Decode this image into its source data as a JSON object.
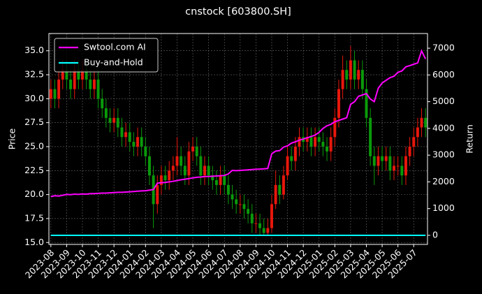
{
  "chart_data": {
    "type": "candlestick",
    "title": "cnstock [603800.SH]",
    "ylabel": "Price",
    "y2label": "Return",
    "categories": [
      "2023-08",
      null,
      null,
      null,
      "2023-09",
      null,
      null,
      null,
      "2023-10",
      null,
      null,
      null,
      "2023-11",
      null,
      null,
      null,
      "2023-12",
      null,
      null,
      null,
      "2024-01",
      null,
      null,
      null,
      "2024-02",
      null,
      null,
      null,
      "2024-03",
      null,
      null,
      null,
      "2024-04",
      null,
      null,
      null,
      "2024-05",
      null,
      null,
      null,
      "2024-06",
      null,
      null,
      null,
      "2024-07",
      null,
      null,
      null,
      "2024-08",
      null,
      null,
      null,
      "2024-09",
      null,
      null,
      null,
      "2024-10",
      null,
      null,
      null,
      "2024-11",
      null,
      null,
      null,
      "2024-12",
      null,
      null,
      null,
      "2025-01",
      null,
      null,
      null,
      "2025-02",
      null,
      null,
      null,
      "2025-03",
      null,
      null,
      null,
      "2025-04",
      null,
      null,
      null,
      "2025-05",
      null,
      null,
      null,
      "2025-06",
      null,
      null,
      null,
      "2025-07",
      null,
      null,
      null
    ],
    "open": [
      30,
      31,
      30,
      32,
      33,
      32,
      31,
      33,
      32,
      33,
      32,
      31,
      32,
      30,
      29,
      28,
      27.5,
      28,
      27,
      26,
      26.5,
      25.5,
      25,
      26,
      25,
      24,
      22,
      19,
      21,
      22,
      21.5,
      22.5,
      23,
      24,
      23,
      22,
      24.5,
      25,
      24,
      22,
      23,
      22,
      21.5,
      21,
      22,
      21,
      20,
      19.5,
      19,
      19,
      18.5,
      18,
      17,
      17,
      16.5,
      16,
      16.5,
      19,
      21,
      20,
      22,
      24,
      23.5,
      25,
      26,
      25.5,
      26,
      25,
      26,
      25.5,
      25,
      24.5,
      26,
      28,
      31,
      33,
      32,
      34,
      32,
      33,
      31,
      28,
      24,
      23,
      24,
      23.5,
      24,
      22.5,
      23,
      23,
      22,
      24,
      25,
      26,
      27,
      28
    ],
    "high": [
      32,
      32,
      33,
      34,
      34,
      33,
      34,
      34,
      34,
      34,
      33,
      33,
      33,
      31,
      30,
      29,
      29,
      29,
      28,
      27.5,
      27.5,
      26.5,
      27,
      27,
      26,
      25,
      23,
      22,
      23,
      23,
      23.5,
      24,
      26,
      25,
      24,
      25.5,
      26,
      26,
      25,
      24,
      24,
      23,
      22.5,
      23,
      23,
      22,
      21,
      20.5,
      20,
      20,
      19.5,
      19,
      18,
      18,
      17.5,
      17.5,
      20,
      22.5,
      22,
      23,
      25,
      25,
      26,
      27,
      27,
      27,
      27,
      27,
      27,
      26.5,
      26,
      27,
      29,
      32,
      34.5,
      34,
      35.5,
      35,
      34,
      34,
      32,
      29,
      25,
      25,
      25,
      25,
      25,
      24,
      24,
      24,
      25,
      26,
      27,
      28,
      29,
      29
    ],
    "low": [
      29,
      29,
      29,
      31,
      31,
      30,
      30,
      31,
      31,
      31,
      30,
      30,
      29,
      28,
      27,
      26.5,
      26.5,
      26,
      25,
      25,
      24.5,
      24,
      24,
      24,
      23,
      21,
      16.5,
      18,
      20,
      20.5,
      20.5,
      21.5,
      22,
      22,
      21,
      21,
      23.5,
      23,
      21,
      21,
      21,
      20.5,
      20,
      20,
      20,
      19,
      18.5,
      18,
      18,
      17.5,
      17,
      16,
      16,
      15.8,
      15.8,
      15.8,
      16,
      18.5,
      19,
      19.5,
      21.5,
      22.5,
      22.5,
      24,
      24.5,
      24.5,
      24,
      24,
      24.5,
      24,
      23.5,
      23.5,
      25,
      27,
      30,
      31,
      31,
      31,
      31,
      30,
      27,
      23,
      21,
      22,
      22.5,
      22.5,
      21.5,
      21.5,
      22,
      21,
      21,
      23,
      24,
      25,
      26,
      26
    ],
    "close": [
      31,
      30,
      32,
      33,
      32,
      31,
      33,
      32,
      33,
      32,
      31,
      32,
      30,
      29,
      28,
      27.5,
      28,
      27,
      26,
      26.5,
      25.5,
      25,
      26,
      25,
      24,
      22,
      19,
      21,
      22,
      21.5,
      22.5,
      23,
      24,
      23,
      22,
      24.5,
      25,
      24,
      22,
      23,
      22,
      21.5,
      21,
      22,
      21,
      20,
      19.5,
      19,
      19,
      18.5,
      18,
      17,
      17,
      16.5,
      16,
      16.5,
      19,
      21,
      20,
      22,
      24,
      23.5,
      25,
      26,
      25.5,
      26,
      25,
      26,
      25.5,
      25,
      24.5,
      26,
      28,
      31,
      33,
      32,
      34,
      32,
      33,
      31,
      28,
      24,
      23,
      24,
      23.5,
      24,
      22.5,
      23,
      23,
      22,
      24,
      25,
      26,
      27,
      28,
      27
    ],
    "up_color": "#e8170c",
    "down_color": "#0a9a0a",
    "series": [
      {
        "name": "Swtool.com AI",
        "color": "#ff00ff",
        "axis": "y2",
        "values": [
          1450,
          1480,
          1470,
          1500,
          1530,
          1520,
          1540,
          1530,
          1550,
          1540,
          1560,
          1560,
          1570,
          1580,
          1580,
          1590,
          1600,
          1610,
          1610,
          1620,
          1630,
          1640,
          1650,
          1660,
          1670,
          1690,
          1710,
          1950,
          1970,
          1980,
          2000,
          2020,
          2050,
          2080,
          2100,
          2120,
          2150,
          2170,
          2180,
          2200,
          2200,
          2210,
          2220,
          2230,
          2240,
          2300,
          2430,
          2420,
          2430,
          2440,
          2450,
          2460,
          2470,
          2480,
          2490,
          2500,
          3050,
          3150,
          3170,
          3300,
          3350,
          3450,
          3500,
          3560,
          3600,
          3650,
          3700,
          3750,
          3850,
          4000,
          4100,
          4150,
          4250,
          4300,
          4350,
          4400,
          4900,
          5000,
          5200,
          5250,
          5300,
          5100,
          5000,
          5500,
          5700,
          5800,
          5900,
          5950,
          6100,
          6150,
          6300,
          6350,
          6400,
          6450,
          6900,
          6600
        ]
      },
      {
        "name": "Buy-and-Hold",
        "color": "#00ffff",
        "axis": "y2",
        "values": [
          0,
          0,
          0,
          0,
          0,
          0,
          0,
          0,
          0,
          0,
          0,
          0,
          0,
          0,
          0,
          0,
          0,
          0,
          0,
          0,
          0,
          0,
          0,
          0,
          0,
          0,
          0,
          0,
          0,
          0,
          0,
          0,
          0,
          0,
          0,
          0,
          0,
          0,
          0,
          0,
          0,
          0,
          0,
          0,
          0,
          0,
          0,
          0,
          0,
          0,
          0,
          0,
          0,
          0,
          0,
          0,
          0,
          0,
          0,
          0,
          0,
          0,
          0,
          0,
          0,
          0,
          0,
          0,
          0,
          0,
          0,
          0,
          0,
          0,
          0,
          0,
          0,
          0,
          0,
          0,
          0,
          0,
          0,
          0,
          0,
          0,
          0,
          0,
          0,
          0,
          0,
          0,
          0,
          0,
          0,
          0
        ]
      }
    ],
    "ylim": [
      14.8,
      36.8
    ],
    "yticks": [
      {
        "value": 15,
        "label": "15.0"
      },
      17.5,
      {
        "value": 20,
        "label": "20.0"
      },
      22.5,
      {
        "value": 25,
        "label": "25.0"
      },
      27.5,
      {
        "value": 30,
        "label": "30.0"
      },
      32.5,
      {
        "value": 35,
        "label": "35.0"
      }
    ],
    "y2lim": [
      -340,
      7550
    ],
    "y2ticks": [
      0,
      1000,
      2000,
      3000,
      4000,
      5000,
      6000,
      7000
    ],
    "grid": true,
    "legend": "upper left"
  }
}
